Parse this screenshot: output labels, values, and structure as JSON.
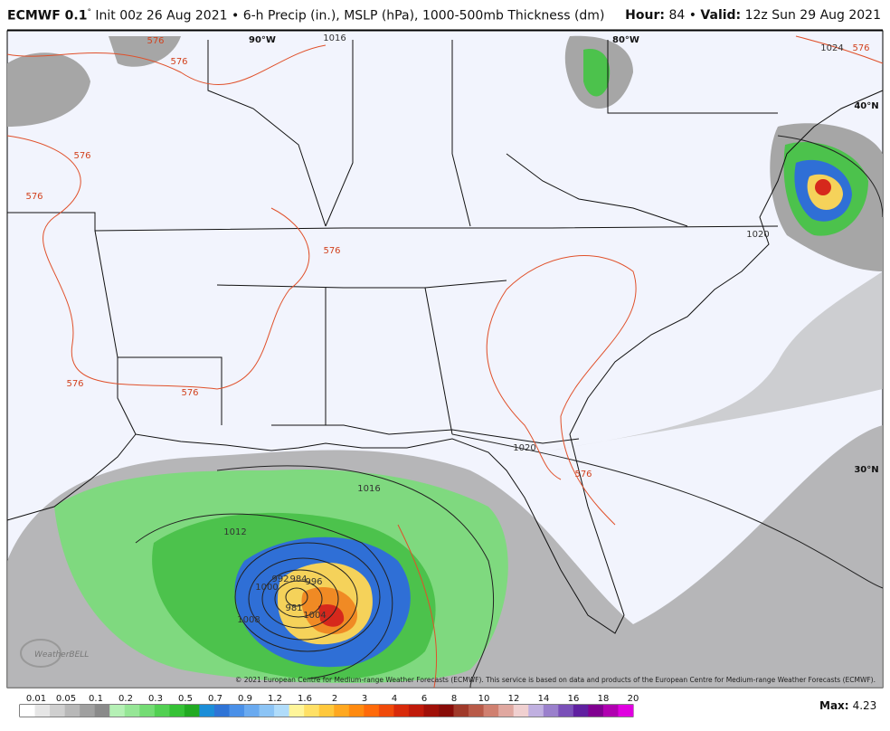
{
  "header": {
    "model": "ECMWF 0.1",
    "degree": "°",
    "description": "Init 00z 26 Aug 2021 • 6-h Precip (in.), MSLP (hPa), 1000-500mb Thickness (dm)",
    "hour_label": "Hour:",
    "hour_value": "84 •",
    "valid_label": "Valid:",
    "valid_value": "12z Sun 29 Aug 2021"
  },
  "map": {
    "graticule_labels": [
      "90°W",
      "80°W",
      "40°N",
      "30°N"
    ],
    "contour_labels": [
      "1016",
      "576",
      "576",
      "576",
      "576",
      "1024",
      "576",
      "576",
      "1020",
      "576",
      "576",
      "1020",
      "576",
      "1016",
      "1012",
      "1008",
      "1000",
      "992",
      "984",
      "996",
      "981",
      "1004"
    ],
    "logo": "WeatherBELL",
    "copyright": "© 2021 European Centre for Medium-range Weather Forecasts (ECMWF). This service is based on data and products of the European Centre for Medium-range Weather Forecasts (ECMWF)."
  },
  "colorbar": {
    "labels": [
      "0.01",
      "0.05",
      "0.1",
      "0.2",
      "0.3",
      "0.5",
      "0.7",
      "0.9",
      "1.2",
      "1.6",
      "2",
      "3",
      "4",
      "6",
      "8",
      "10",
      "12",
      "14",
      "16",
      "18",
      "20"
    ]
  },
  "footer": {
    "max_label": "Max:",
    "max_value": "4.23"
  }
}
